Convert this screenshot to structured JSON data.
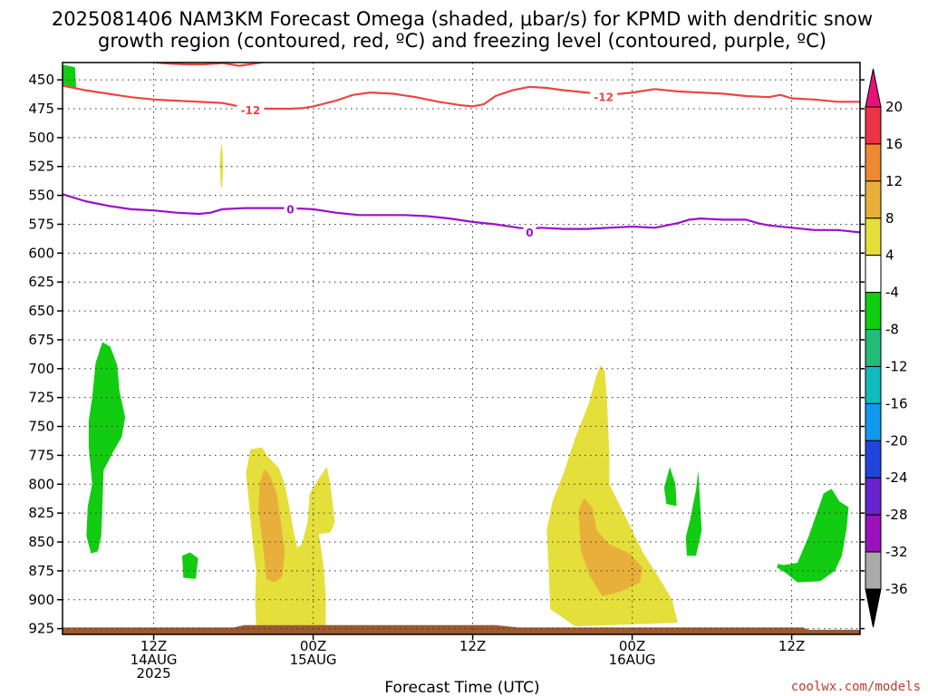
{
  "chart_data": {
    "type": "heatmap",
    "title_line1": "2025081406 NAM3KM Forecast Omega (shaded, μbar/s) for KPMD with dendritic snow",
    "title_line2": "growth region (contoured, red, ºC) and freezing level (contoured, purple, ºC)",
    "xlabel": "Forecast Time (UTC)",
    "credit": "coolwx.com/models",
    "x_range_hours": [
      0,
      70
    ],
    "y_range_hpa": [
      435,
      930
    ],
    "y_ticks": [
      450,
      475,
      500,
      525,
      550,
      575,
      600,
      625,
      650,
      675,
      700,
      725,
      750,
      775,
      800,
      825,
      850,
      875,
      900,
      925
    ],
    "x_ticks": [
      {
        "hour": 8,
        "lines": [
          "12Z",
          "14AUG",
          "2025"
        ]
      },
      {
        "hour": 22,
        "lines": [
          "00Z",
          "15AUG"
        ]
      },
      {
        "hour": 36,
        "lines": [
          "12Z"
        ]
      },
      {
        "hour": 50,
        "lines": [
          "00Z",
          "16AUG"
        ]
      },
      {
        "hour": 64,
        "lines": [
          "12Z"
        ]
      }
    ],
    "colorbar": {
      "labels": [
        "20",
        "16",
        "12",
        "8",
        "4",
        "-4",
        "-8",
        "-12",
        "-16",
        "-20",
        "-24",
        "-28",
        "-32",
        "-36"
      ],
      "bands": [
        {
          "name": "16 to 20",
          "color": "#ee3344"
        },
        {
          "name": "12 to 16",
          "color": "#ee8833"
        },
        {
          "name": "8 to 12",
          "color": "#e8b03a"
        },
        {
          "name": "4 to 8",
          "color": "#e5df3c"
        },
        {
          "name": "-4 to 4",
          "color": "#ffffff"
        },
        {
          "name": "-8 to -4",
          "color": "#11cc11"
        },
        {
          "name": "-12 to -8",
          "color": "#22bb77"
        },
        {
          "name": "-16 to -12",
          "color": "#11bbbb"
        },
        {
          "name": "-20 to -16",
          "color": "#1199ee"
        },
        {
          "name": "-24 to -20",
          "color": "#2244dd"
        },
        {
          "name": "-28 to -24",
          "color": "#6622cc"
        },
        {
          "name": "-32 to -28",
          "color": "#9911bb"
        },
        {
          "name": "-36 to -32",
          "color": "#aaaaaa"
        }
      ],
      "top_arrow_color": "#e8117a",
      "bottom_arrow_color": "#000000"
    },
    "colors": {
      "dgz_contour": "#ee4444",
      "freezing_contour": "#9911cc",
      "ground": "#9c5a30"
    },
    "contours": [
      {
        "name": "dgz-upper",
        "label": "",
        "color": "#ee4444",
        "points": [
          [
            8.2,
            435
          ],
          [
            9.5,
            436
          ],
          [
            11,
            436.6
          ],
          [
            12.5,
            436.5
          ],
          [
            14,
            435.5
          ],
          [
            15.5,
            437.8
          ],
          [
            16.8,
            436
          ],
          [
            18,
            434
          ]
        ]
      },
      {
        "name": "dgz-minus12",
        "label": "-12",
        "label_at": [
          [
            16.5,
            476
          ],
          [
            47.5,
            465
          ]
        ],
        "color": "#ee4444",
        "points": [
          [
            0,
            455
          ],
          [
            2,
            459
          ],
          [
            4,
            462
          ],
          [
            6,
            465
          ],
          [
            8,
            467
          ],
          [
            10,
            468
          ],
          [
            12,
            469
          ],
          [
            14,
            470
          ],
          [
            16,
            474
          ],
          [
            18,
            475
          ],
          [
            20,
            475
          ],
          [
            21,
            474.5
          ],
          [
            22,
            473
          ],
          [
            24,
            468
          ],
          [
            25.5,
            463
          ],
          [
            27,
            461
          ],
          [
            29,
            462
          ],
          [
            31,
            465
          ],
          [
            33,
            469
          ],
          [
            35,
            472
          ],
          [
            36,
            473
          ],
          [
            37,
            471
          ],
          [
            38,
            464
          ],
          [
            39.5,
            459
          ],
          [
            41,
            456
          ],
          [
            42.5,
            457
          ],
          [
            44,
            459
          ],
          [
            46,
            461
          ],
          [
            48,
            463
          ],
          [
            50,
            461
          ],
          [
            52,
            458
          ],
          [
            54,
            460
          ],
          [
            56,
            461
          ],
          [
            58,
            462
          ],
          [
            60,
            464
          ],
          [
            62,
            465
          ],
          [
            63,
            463
          ],
          [
            64,
            466
          ],
          [
            66,
            467
          ],
          [
            68,
            469
          ],
          [
            70,
            469
          ]
        ]
      },
      {
        "name": "freezing-level",
        "label": "0",
        "label_at": [
          [
            20,
            562
          ],
          [
            41,
            582
          ]
        ],
        "color": "#9911cc",
        "points": [
          [
            0,
            549
          ],
          [
            2,
            555
          ],
          [
            4,
            559
          ],
          [
            6,
            562
          ],
          [
            8,
            563
          ],
          [
            10,
            565
          ],
          [
            12,
            566
          ],
          [
            13,
            565
          ],
          [
            14,
            562
          ],
          [
            16,
            561
          ],
          [
            18,
            561
          ],
          [
            20,
            561
          ],
          [
            22,
            562
          ],
          [
            24,
            565
          ],
          [
            26,
            567
          ],
          [
            28,
            567
          ],
          [
            30,
            567
          ],
          [
            32,
            568
          ],
          [
            34,
            570
          ],
          [
            36,
            573
          ],
          [
            38,
            575
          ],
          [
            40,
            578
          ],
          [
            41,
            579
          ],
          [
            42,
            578
          ],
          [
            44,
            579
          ],
          [
            46,
            579
          ],
          [
            48,
            578
          ],
          [
            50,
            577
          ],
          [
            52,
            578
          ],
          [
            54,
            574
          ],
          [
            55,
            571
          ],
          [
            56,
            570
          ],
          [
            58,
            571
          ],
          [
            60,
            571
          ],
          [
            61,
            574
          ],
          [
            62,
            576
          ],
          [
            64,
            578
          ],
          [
            66,
            580
          ],
          [
            68,
            580
          ],
          [
            70,
            582
          ]
        ]
      }
    ],
    "shaded_regions": [
      {
        "name": "green-sinking-top-left",
        "value_range": "-8 to -4",
        "color": "#11cc11",
        "points": [
          [
            0.05,
            437
          ],
          [
            1.1,
            439
          ],
          [
            1.2,
            458
          ],
          [
            0.05,
            456
          ]
        ]
      },
      {
        "name": "green-sinking-left-column",
        "value_range": "-8 to -4",
        "color": "#11cc11",
        "points": [
          [
            2.6,
            725
          ],
          [
            2.9,
            695
          ],
          [
            3.5,
            677
          ],
          [
            4.2,
            681
          ],
          [
            4.8,
            697
          ],
          [
            5,
            720
          ],
          [
            5.5,
            742
          ],
          [
            5.2,
            759
          ],
          [
            4.5,
            771
          ],
          [
            3.6,
            788
          ],
          [
            3.5,
            818
          ],
          [
            3.4,
            845
          ],
          [
            3.1,
            858
          ],
          [
            2.5,
            860
          ],
          [
            2.1,
            845
          ],
          [
            2.2,
            820
          ],
          [
            2.6,
            800
          ],
          [
            2.3,
            768
          ],
          [
            2.3,
            745
          ]
        ]
      },
      {
        "name": "green-sinking-small-blob",
        "value_range": "-8 to -4",
        "color": "#11cc11",
        "points": [
          [
            10.5,
            862
          ],
          [
            11.2,
            859
          ],
          [
            11.9,
            864
          ],
          [
            11.7,
            882
          ],
          [
            10.6,
            881
          ]
        ]
      },
      {
        "name": "yellow-rising-narrow-streak",
        "value_range": "4 to 8",
        "color": "#e5df3c",
        "points": [
          [
            13.8,
            522
          ],
          [
            13.9,
            507
          ],
          [
            14,
            506
          ],
          [
            14.1,
            525
          ],
          [
            14,
            543
          ],
          [
            13.9,
            543
          ]
        ]
      },
      {
        "name": "yellow-rising-core-1",
        "value_range": "4 to 8",
        "color": "#e5df3c",
        "points": [
          [
            16.1,
            790
          ],
          [
            16.5,
            770
          ],
          [
            17.5,
            768
          ],
          [
            18,
            776
          ],
          [
            19,
            786
          ],
          [
            19.5,
            800
          ],
          [
            19.9,
            820
          ],
          [
            20.3,
            842
          ],
          [
            20.6,
            855
          ],
          [
            21,
            852
          ],
          [
            21.5,
            833
          ],
          [
            21.7,
            808
          ],
          [
            22.5,
            795
          ],
          [
            23.2,
            785
          ],
          [
            23.5,
            800
          ],
          [
            23.9,
            833
          ],
          [
            23.5,
            842
          ],
          [
            22.5,
            843
          ],
          [
            22.9,
            870
          ],
          [
            23.1,
            895
          ],
          [
            23.1,
            922
          ],
          [
            17,
            922
          ],
          [
            16.9,
            900
          ],
          [
            17,
            875
          ],
          [
            16.7,
            850
          ],
          [
            16.4,
            820
          ]
        ]
      },
      {
        "name": "orange-rising-core-1",
        "value_range": "8 to 12",
        "color": "#e8b03a",
        "points": [
          [
            17.2,
            823
          ],
          [
            17.3,
            800
          ],
          [
            17.7,
            787
          ],
          [
            18.2,
            792
          ],
          [
            18.8,
            808
          ],
          [
            19.2,
            835
          ],
          [
            19.5,
            858
          ],
          [
            19.3,
            880
          ],
          [
            18.6,
            885
          ],
          [
            17.9,
            882
          ],
          [
            17.6,
            855
          ]
        ]
      },
      {
        "name": "yellow-rising-core-2",
        "value_range": "4 to 8",
        "color": "#e5df3c",
        "points": [
          [
            42.5,
            840
          ],
          [
            43,
            815
          ],
          [
            44,
            790
          ],
          [
            45,
            760
          ],
          [
            46.2,
            730
          ],
          [
            46.8,
            708
          ],
          [
            47.2,
            697
          ],
          [
            47.6,
            702
          ],
          [
            47.8,
            730
          ],
          [
            48,
            775
          ],
          [
            48,
            800
          ],
          [
            49.5,
            830
          ],
          [
            51,
            860
          ],
          [
            52.3,
            880
          ],
          [
            53.5,
            900
          ],
          [
            54,
            920
          ],
          [
            45,
            923
          ],
          [
            42.8,
            908
          ],
          [
            42.7,
            880
          ]
        ]
      },
      {
        "name": "orange-rising-core-2",
        "value_range": "8 to 12",
        "color": "#e8b03a",
        "points": [
          [
            45.3,
            822
          ],
          [
            45.8,
            812
          ],
          [
            46.5,
            820
          ],
          [
            46.9,
            840
          ],
          [
            48,
            852
          ],
          [
            49.8,
            860
          ],
          [
            50.9,
            872
          ],
          [
            50.7,
            885
          ],
          [
            49,
            893
          ],
          [
            47.4,
            897
          ],
          [
            46.3,
            880
          ],
          [
            45.5,
            858
          ]
        ]
      },
      {
        "name": "green-sinking-small-right-1",
        "value_range": "-8 to -4",
        "color": "#11cc11",
        "points": [
          [
            52.8,
            803
          ],
          [
            53.3,
            785
          ],
          [
            53.8,
            800
          ],
          [
            53.9,
            819
          ],
          [
            53,
            817
          ]
        ]
      },
      {
        "name": "green-sinking-small-right-2",
        "value_range": "-8 to -4",
        "color": "#11cc11",
        "points": [
          [
            54.7,
            846
          ],
          [
            55.1,
            830
          ],
          [
            55.6,
            805
          ],
          [
            55.8,
            788
          ],
          [
            56.1,
            840
          ],
          [
            55.6,
            862
          ],
          [
            54.8,
            862
          ]
        ]
      },
      {
        "name": "green-sinking-right",
        "value_range": "-8 to -4",
        "color": "#11cc11",
        "points": [
          [
            62.8,
            869
          ],
          [
            63.3,
            870
          ],
          [
            64.5,
            868
          ],
          [
            65.5,
            845
          ],
          [
            66.2,
            825
          ],
          [
            66.8,
            808
          ],
          [
            67.5,
            804
          ],
          [
            68.2,
            815
          ],
          [
            69,
            820
          ],
          [
            68.8,
            840
          ],
          [
            68.4,
            862
          ],
          [
            67.8,
            875
          ],
          [
            66.5,
            884
          ],
          [
            64.5,
            885
          ],
          [
            63.5,
            877
          ],
          [
            62.7,
            872
          ]
        ]
      }
    ],
    "ground": {
      "name": "terrain",
      "color": "#9c5a30",
      "top_hpa": [
        [
          0,
          924
        ],
        [
          15,
          924
        ],
        [
          16,
          922
        ],
        [
          38,
          922
        ],
        [
          40,
          924
        ],
        [
          65,
          924
        ],
        [
          65.5,
          926
        ],
        [
          70,
          926
        ]
      ],
      "bottom_hpa": 930
    }
  }
}
